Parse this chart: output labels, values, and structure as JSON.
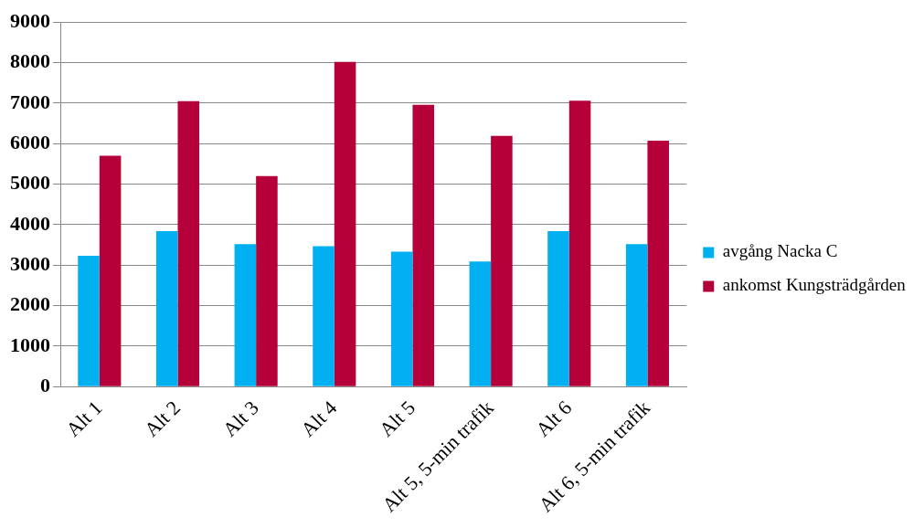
{
  "chart_data": {
    "type": "bar",
    "categories": [
      "Alt 1",
      "Alt 2",
      "Alt 3",
      "Alt 4",
      "Alt 5",
      "Alt 5, 5-min trafik",
      "Alt 6",
      "Alt 6, 5-min trafik"
    ],
    "series": [
      {
        "name": "avgång Nacka C",
        "color": "#00b0f0",
        "values": [
          3230,
          3840,
          3520,
          3470,
          3330,
          3090,
          3840,
          3520
        ]
      },
      {
        "name": "ankomst Kungsträdgården",
        "color": "#b5003a",
        "values": [
          5700,
          7050,
          5200,
          8020,
          6960,
          6190,
          7060,
          6070
        ]
      }
    ],
    "ylim": [
      0,
      9000
    ],
    "yticks": [
      0,
      1000,
      2000,
      3000,
      4000,
      5000,
      6000,
      7000,
      8000,
      9000
    ],
    "grid": "y",
    "legend": "right"
  }
}
